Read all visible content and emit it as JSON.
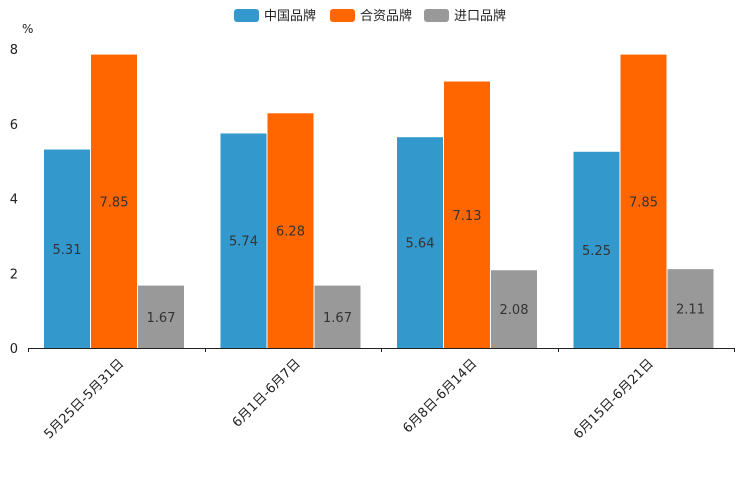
{
  "chart_data": {
    "type": "bar",
    "title": "",
    "xlabel": "",
    "ylabel": "",
    "unit": "%",
    "ylim": [
      0,
      8
    ],
    "yticks": [
      0,
      2,
      4,
      6,
      8
    ],
    "grid": false,
    "legend_position": "top-center",
    "categories": [
      "5月25日-5月31日",
      "6月1日-6月7日",
      "6月8日-6月14日",
      "6月15日-6月21日"
    ],
    "series": [
      {
        "name": "中国品牌",
        "color": "#3399CC",
        "values": [
          5.31,
          5.74,
          5.64,
          5.25
        ]
      },
      {
        "name": "合资品牌",
        "color": "#FF6600",
        "values": [
          7.85,
          6.28,
          7.13,
          7.85
        ]
      },
      {
        "name": "进口品牌",
        "color": "#999999",
        "values": [
          1.67,
          1.67,
          2.08,
          2.11
        ]
      }
    ]
  }
}
